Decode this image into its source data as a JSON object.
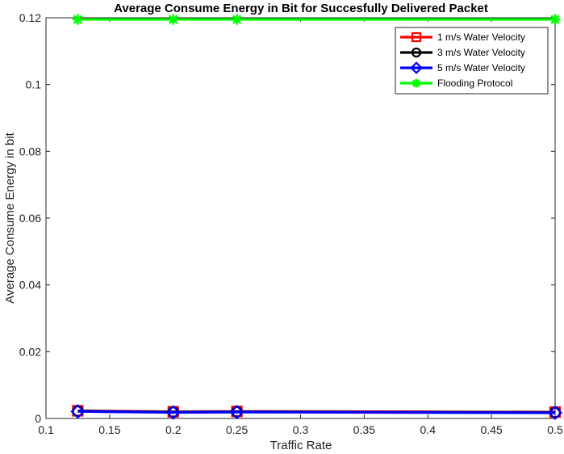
{
  "chart_data": {
    "type": "line",
    "title": "Average Consume Energy in Bit for Succesfully Delivered Packet",
    "xlabel": "Traffic Rate",
    "ylabel": "Average Consume Energy in bit",
    "xlim": [
      0.1,
      0.5
    ],
    "ylim": [
      0,
      0.12
    ],
    "xticks": [
      0.1,
      0.15,
      0.2,
      0.25,
      0.3,
      0.35,
      0.4,
      0.45,
      0.5
    ],
    "xtick_labels": [
      "0.1",
      "0.15",
      "0.2",
      "0.25",
      "0.3",
      "0.35",
      "0.4",
      "0.45",
      "0.5"
    ],
    "yticks": [
      0,
      0.02,
      0.04,
      0.06,
      0.08,
      0.1,
      0.12
    ],
    "ytick_labels": [
      "0",
      "0.02",
      "0.04",
      "0.06",
      "0.08",
      "0.1",
      "0.12"
    ],
    "grid": false,
    "legend_position": "top-right",
    "x": [
      0.125,
      0.2,
      0.25,
      0.5
    ],
    "series": [
      {
        "name": "1 m/s Water Velocity",
        "values": [
          0.0023,
          0.002,
          0.0021,
          0.0019
        ],
        "color": "#ff0000",
        "marker": "square"
      },
      {
        "name": "3 m/s Water Velocity",
        "values": [
          0.0022,
          0.0019,
          0.002,
          0.0018
        ],
        "color": "#000000",
        "marker": "circle"
      },
      {
        "name": "5 m/s Water Velocity",
        "values": [
          0.0021,
          0.0018,
          0.0019,
          0.0017
        ],
        "color": "#0000ff",
        "marker": "diamond"
      },
      {
        "name": "Flooding Protocol",
        "values": [
          0.1195,
          0.1195,
          0.1195,
          0.1195
        ],
        "color": "#00ff00",
        "marker": "asterisk"
      }
    ]
  }
}
